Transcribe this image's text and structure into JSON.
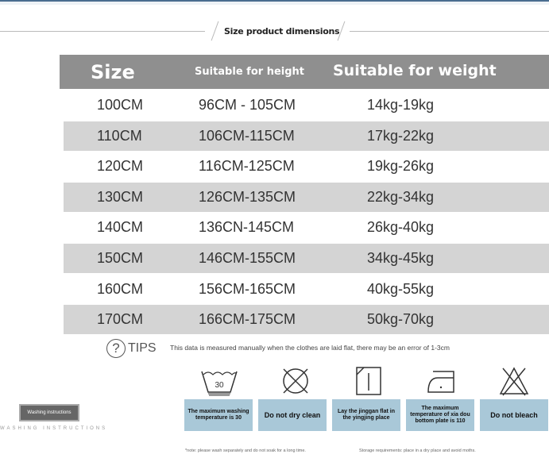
{
  "title": "Size product dimensions",
  "header": {
    "size": "Size",
    "height": "Suitable for height",
    "weight": "Suitable for weight"
  },
  "rows": [
    {
      "size": "100CM",
      "height": "96CM - 105CM",
      "weight": "14kg-19kg"
    },
    {
      "size": "110CM",
      "height": "106CM-115CM",
      "weight": "17kg-22kg"
    },
    {
      "size": "120CM",
      "height": "116CM-125CM",
      "weight": "19kg-26kg"
    },
    {
      "size": "130CM",
      "height": "126CM-135CM",
      "weight": "22kg-34kg"
    },
    {
      "size": "140CM",
      "height": "136CN-145CM",
      "weight": "26kg-40kg"
    },
    {
      "size": "150CM",
      "height": "146CM-155CM",
      "weight": "34kg-45kg"
    },
    {
      "size": "160CM",
      "height": "156CM-165CM",
      "weight": "40kg-55kg"
    },
    {
      "size": "170CM",
      "height": "166CM-175CM",
      "weight": "50kg-70kg"
    }
  ],
  "tips": {
    "label": "TIPS",
    "text": "This data is measured manually when the clothes are laid flat, there may be an error of 1-3cm"
  },
  "washing": {
    "button": "Washing instructions",
    "label": "WASHING INSTRUCTIONS",
    "wash_temp": "30",
    "care": [
      "The maximum washing temperature is 30 ",
      "Do not dry clean",
      "Lay the jinggan flat in the yingjing place",
      "The maximum temperature of xia dou bottom plate is 110 ",
      "Do not bleach"
    ],
    "icons": [
      "wash-30-icon",
      "no-dry-clean-icon",
      "dry-flat-icon",
      "iron-low-icon",
      "no-bleach-icon"
    ]
  },
  "notes": {
    "wash": "*note: please wash separately and do not soak for a long time.",
    "storage": "Storage requirements: place in a dry place and avoid moths."
  },
  "colors": {
    "header": "#8f8f8f",
    "stripe": "#d4d4d4",
    "care_box": "#a9c8d8"
  }
}
